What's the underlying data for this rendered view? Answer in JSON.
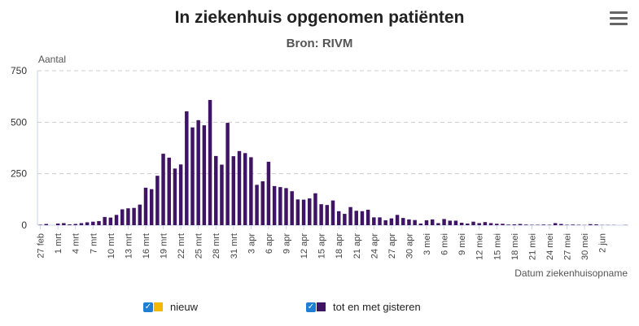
{
  "chart_data": {
    "type": "bar",
    "title": "In ziekenhuis opgenomen patiënten",
    "subtitle": "Bron: RIVM",
    "ylabel": "Aantal",
    "xlabel": "Datum ziekenhuisopname",
    "ylim": [
      0,
      750
    ],
    "yticks": [
      0,
      250,
      500,
      750
    ],
    "grid": true,
    "legend_position": "bottom",
    "x_tick_labels": [
      "27 feb",
      "1 mrt",
      "4 mrt",
      "7 mrt",
      "10 mrt",
      "13 mrt",
      "16 mrt",
      "19 mrt",
      "22 mrt",
      "25 mrt",
      "28 mrt",
      "31 mrt",
      "3 apr",
      "6 apr",
      "9 apr",
      "12 apr",
      "15 apr",
      "18 apr",
      "21 apr",
      "24 apr",
      "27 apr",
      "30 apr",
      "3 mei",
      "6 mei",
      "9 mei",
      "12 mei",
      "15 mei",
      "18 mei",
      "21 mei",
      "24 mei",
      "27 mei",
      "30 mei",
      "2 jun"
    ],
    "x_tick_every_days": 3,
    "series": [
      {
        "name": "nieuw",
        "color": "#f5b800",
        "values": []
      },
      {
        "name": "tot en met gisteren",
        "color": "#3f1465",
        "values": [
          2,
          6,
          0,
          8,
          10,
          4,
          6,
          10,
          14,
          17,
          20,
          40,
          37,
          50,
          77,
          82,
          84,
          100,
          182,
          175,
          240,
          347,
          328,
          275,
          295,
          553,
          475,
          510,
          485,
          608,
          336,
          294,
          497,
          335,
          360,
          350,
          330,
          196,
          213,
          308,
          190,
          185,
          180,
          165,
          125,
          124,
          130,
          155,
          102,
          98,
          120,
          68,
          55,
          88,
          70,
          68,
          75,
          38,
          38,
          24,
          33,
          50,
          35,
          28,
          25,
          8,
          24,
          28,
          10,
          30,
          22,
          22,
          12,
          8,
          17,
          10,
          15,
          10,
          7,
          7,
          3,
          4,
          6,
          3,
          2,
          2,
          3,
          2,
          10,
          6,
          2,
          3,
          2,
          1,
          5,
          4,
          1,
          1,
          1,
          0,
          1
        ]
      }
    ]
  },
  "ui": {
    "menu_icon": "hamburger-menu-icon",
    "checkbox_mark": "✓"
  }
}
